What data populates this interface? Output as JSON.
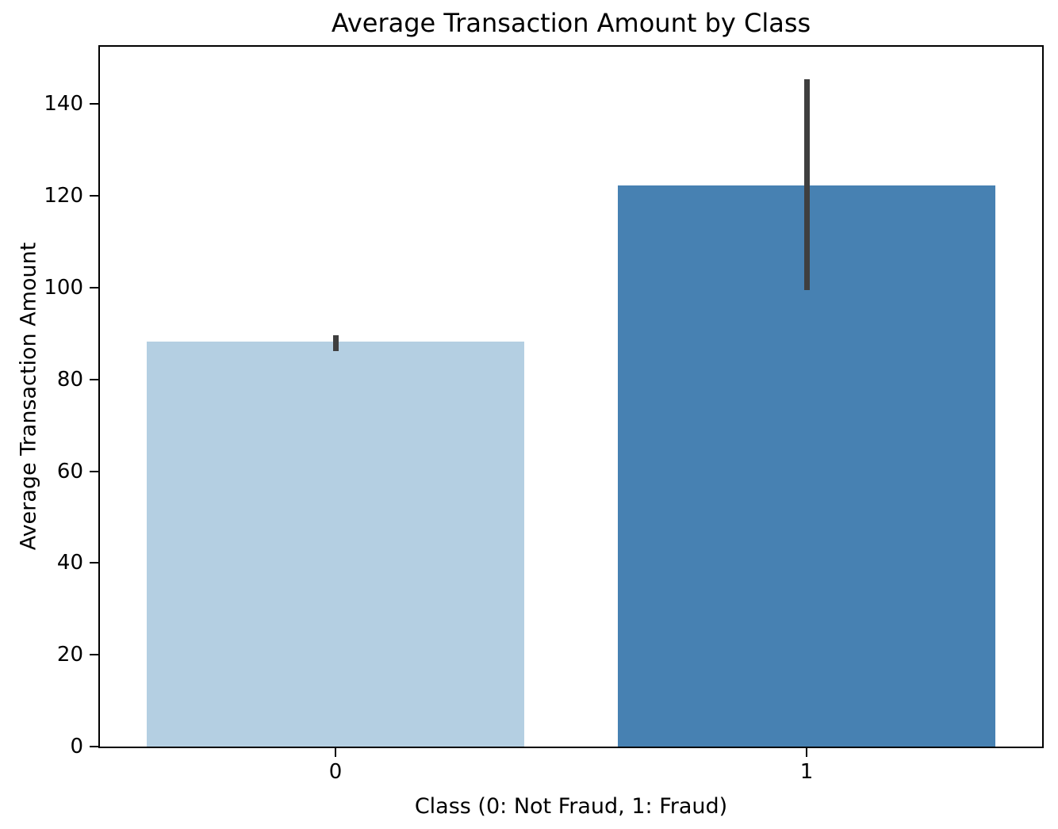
{
  "figure": {
    "background": "#ffffff",
    "spine_color": "#000000"
  },
  "chart_data": {
    "type": "bar",
    "title": "Average Transaction Amount by Class",
    "xlabel": "Class (0: Not Fraud, 1: Fraud)",
    "ylabel": "Average Transaction Amount",
    "categories": [
      "0",
      "1"
    ],
    "values": [
      88.3,
      122.2
    ],
    "error_bars": [
      {
        "low": 86.2,
        "high": 89.7
      },
      {
        "low": 99.5,
        "high": 145.5
      }
    ],
    "bar_colors": [
      "#b4cfe2",
      "#4781b2"
    ],
    "error_bar_color": "#3f3f3f",
    "ylim": [
      0,
      152.5
    ],
    "yticks": [
      0,
      20,
      40,
      60,
      80,
      100,
      120,
      140
    ],
    "bar_width_fraction": 0.8,
    "grid": false,
    "legend": null
  }
}
